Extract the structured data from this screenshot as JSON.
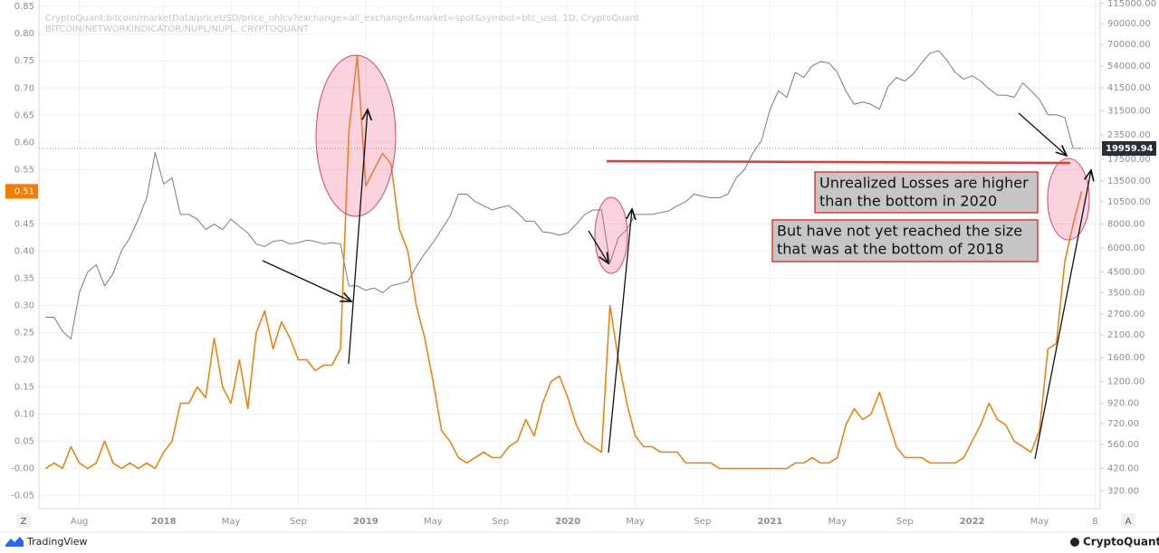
{
  "chart_data": {
    "type": "line",
    "x": [
      -7,
      -6.5,
      -6,
      -5.5,
      -5,
      -4.5,
      -4,
      -3.5,
      -3,
      -2.5,
      -2,
      -1.5,
      -1,
      -0.5,
      0,
      0.5,
      1,
      1.5,
      2,
      2.5,
      3,
      3.5,
      4,
      4.5,
      5,
      5.5,
      6,
      6.5,
      7,
      7.5,
      8,
      8.5,
      9,
      9.5,
      10,
      10.5,
      11,
      11.5,
      12,
      12.5,
      13,
      13.5,
      14,
      14.5,
      15,
      15.5,
      16,
      16.5,
      17,
      17.5,
      18,
      18.5,
      19,
      19.5,
      20,
      20.5,
      21,
      21.5,
      22,
      22.5,
      23,
      23.5,
      24,
      24.5,
      25,
      25.5,
      26,
      26.5,
      27,
      27.5,
      28,
      28.5,
      29,
      29.5,
      30,
      30.5,
      31,
      31.5,
      32,
      32.5,
      33,
      33.5,
      34,
      34.5,
      35,
      35.5,
      36,
      36.5,
      37,
      37.5,
      38,
      38.5,
      39,
      39.5,
      40,
      40.5,
      41,
      41.5,
      42,
      42.5,
      43,
      43.5,
      44,
      44.5,
      45,
      45.5,
      46,
      46.5,
      47,
      47.5,
      48,
      48.5,
      49,
      49.5,
      50,
      50.5,
      51,
      51.5,
      52,
      52.5,
      53,
      53.5,
      54,
      54.5
    ],
    "series": [
      {
        "name": "CryptoQuant:bitcoin/marketData/priceUSD/price_ohlcv?exchange=all_exchange&market=spot&symbol=btc_usd, 1D, CryptoQuant",
        "color": "#7a7a7a",
        "axis": "y2",
        "current_value": 19959.94,
        "values": [
          2600,
          2600,
          2200,
          2000,
          3500,
          4500,
          4900,
          3800,
          4400,
          5800,
          6800,
          8500,
          11000,
          19000,
          13000,
          14000,
          9000,
          9000,
          8500,
          7500,
          8000,
          7500,
          8500,
          7800,
          7200,
          6300,
          6100,
          6500,
          6600,
          6300,
          6400,
          6600,
          6500,
          6300,
          6400,
          6300,
          3800,
          3800,
          3600,
          3700,
          3500,
          3800,
          3900,
          4000,
          4800,
          5600,
          6400,
          7500,
          8800,
          11500,
          11500,
          10500,
          10000,
          9500,
          9800,
          10000,
          9200,
          8300,
          8300,
          7300,
          7200,
          7000,
          7200,
          8000,
          9000,
          9500,
          9500,
          5000,
          6800,
          7500,
          9000,
          9000,
          9000,
          9200,
          9400,
          10000,
          10500,
          11500,
          11200,
          11000,
          11000,
          11500,
          14000,
          15500,
          19000,
          22000,
          32000,
          40000,
          37000,
          50000,
          47000,
          54000,
          57000,
          56000,
          50000,
          40000,
          34000,
          35000,
          34000,
          32000,
          42000,
          47000,
          45000,
          49000,
          56000,
          63000,
          65000,
          58000,
          50000,
          46000,
          48000,
          45000,
          41000,
          38000,
          38000,
          37000,
          44000,
          40000,
          36000,
          30000,
          30000,
          29000,
          20000,
          19959.94
        ]
      },
      {
        "name": "BITCOIN/NETWORKINDICATOR/NUPL/NUPL, CRYPTOQUANT",
        "color": "#f57c00",
        "axis": "y",
        "current_value": 0.51,
        "values": [
          0,
          0.01,
          0,
          0.04,
          0.01,
          0,
          0.01,
          0.05,
          0.01,
          0,
          0.01,
          0,
          0.01,
          0,
          0.03,
          0.05,
          0.12,
          0.12,
          0.15,
          0.13,
          0.24,
          0.15,
          0.12,
          0.2,
          0.11,
          0.25,
          0.29,
          0.22,
          0.27,
          0.24,
          0.2,
          0.2,
          0.18,
          0.19,
          0.19,
          0.22,
          0.62,
          0.76,
          0.52,
          0.55,
          0.58,
          0.56,
          0.44,
          0.4,
          0.3,
          0.24,
          0.16,
          0.07,
          0.05,
          0.02,
          0.01,
          0.02,
          0.03,
          0.02,
          0.02,
          0.04,
          0.05,
          0.09,
          0.06,
          0.12,
          0.16,
          0.17,
          0.13,
          0.08,
          0.05,
          0.04,
          0.03,
          0.3,
          0.2,
          0.12,
          0.06,
          0.04,
          0.04,
          0.03,
          0.03,
          0.03,
          0.01,
          0.01,
          0.01,
          0.01,
          0,
          0,
          0,
          0,
          0,
          0,
          0,
          0,
          0,
          0.01,
          0.01,
          0.02,
          0.01,
          0.01,
          0.02,
          0.08,
          0.11,
          0.09,
          0.1,
          0.14,
          0.09,
          0.04,
          0.02,
          0.02,
          0.02,
          0.01,
          0.01,
          0.01,
          0.01,
          0.02,
          0.05,
          0.08,
          0.12,
          0.09,
          0.08,
          0.05,
          0.04,
          0.03,
          0.07,
          0.22,
          0.23,
          0.38,
          0.45,
          0.51
        ]
      }
    ],
    "xlim": [
      -7.4,
      55.6
    ],
    "xticks": [
      {
        "value": -5,
        "label": "Aug"
      },
      {
        "value": 0,
        "label": "2018"
      },
      {
        "value": 4,
        "label": "May"
      },
      {
        "value": 8,
        "label": "Sep"
      },
      {
        "value": 12,
        "label": "2019"
      },
      {
        "value": 16,
        "label": "May"
      },
      {
        "value": 20,
        "label": "Sep"
      },
      {
        "value": 24,
        "label": "2020"
      },
      {
        "value": 28,
        "label": "May"
      },
      {
        "value": 32,
        "label": "Sep"
      },
      {
        "value": 36,
        "label": "2021"
      },
      {
        "value": 40,
        "label": "May"
      },
      {
        "value": 44,
        "label": "Sep"
      },
      {
        "value": 48,
        "label": "2022"
      },
      {
        "value": 52,
        "label": "May"
      },
      {
        "value": 55.3,
        "label": "8"
      }
    ],
    "ylim": [
      -0.074,
      0.862
    ],
    "yticks": [
      -0.05,
      {
        "value": 0,
        "label": "-0.00"
      },
      0.05,
      {
        "value": 0.1,
        "label": "0.10"
      },
      0.15,
      {
        "value": 0.2,
        "label": "0.20"
      },
      0.25,
      {
        "value": 0.3,
        "label": "0.30"
      },
      0.35,
      {
        "value": 0.4,
        "label": "0.40"
      },
      0.45,
      0.55,
      {
        "value": 0.6,
        "label": "0.60"
      },
      0.65,
      {
        "value": 0.7,
        "label": "0.70"
      },
      0.75,
      {
        "value": 0.8,
        "label": "0.80"
      },
      0.85
    ],
    "y2lim": [
      258,
      119800
    ],
    "y2scale": "log",
    "y2ticks": [
      {
        "value": 115000,
        "label": "115000.00"
      },
      {
        "value": 90000,
        "label": "90000.00"
      },
      {
        "value": 70000,
        "label": "70000.00"
      },
      {
        "value": 54000,
        "label": "54000.00"
      },
      {
        "value": 41500,
        "label": "41500.00"
      },
      {
        "value": 31500,
        "label": "31500.00"
      },
      {
        "value": 23500,
        "label": "23500.00"
      },
      {
        "value": 17500,
        "label": "17500.00"
      },
      {
        "value": 13500,
        "label": "13500.00"
      },
      {
        "value": 10500,
        "label": "10500.00"
      },
      {
        "value": 8000,
        "label": "8000.00"
      },
      {
        "value": 6000,
        "label": "6000.00"
      },
      {
        "value": 4500,
        "label": "4500.00"
      },
      {
        "value": 3500,
        "label": "3500.00"
      },
      {
        "value": 2700,
        "label": "2700.00"
      },
      {
        "value": 2100,
        "label": "2100.00"
      },
      {
        "value": 1600,
        "label": "1600.00"
      },
      {
        "value": 1200,
        "label": "1200.00"
      },
      {
        "value": 920,
        "label": "920.00"
      },
      {
        "value": 720,
        "label": "720.00"
      },
      {
        "value": 560,
        "label": "560.00"
      },
      {
        "value": 420,
        "label": "420.00"
      },
      {
        "value": 320,
        "label": "320.00"
      }
    ],
    "grid": true,
    "annotations": [
      {
        "lines": [
          "Unrealized Losses are higher",
          "than the bottom in 2020"
        ]
      },
      {
        "lines": [
          "But have not yet reached the size",
          "that was at the bottom of 2018"
        ]
      }
    ]
  },
  "controls": {
    "left": "Z",
    "right": "A"
  },
  "footer": {
    "left": "TradingView",
    "right": "CryptoQuant"
  }
}
